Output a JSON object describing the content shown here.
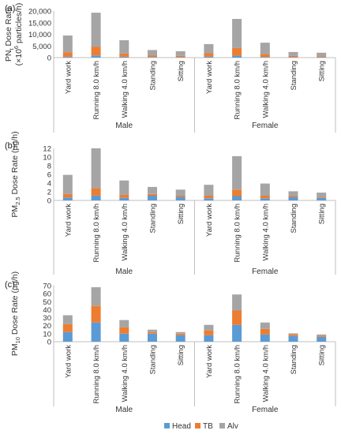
{
  "colors": {
    "Head": "#5b9bd5",
    "TB": "#ed7d31",
    "Alv": "#a5a5a5"
  },
  "legend": [
    "Head",
    "TB",
    "Alv"
  ],
  "chart_data": [
    {
      "type": "bar",
      "stacked": true,
      "panel_label": "(a)",
      "ylabel": "PN",
      "ylabel_sub": "t",
      "ylabel_rest": " Dose Rate",
      "ylabel_line2": "(×10",
      "ylabel_line2_sup": "6",
      "ylabel_line2_rest": " particles/h)",
      "ylim": [
        0,
        20000
      ],
      "yticks": [
        "0",
        "5,000",
        "10,000",
        "15,000",
        "20,000"
      ],
      "groups": [
        "Male",
        "Female"
      ],
      "categories": [
        "Yard work",
        "Running 8.0 km/h",
        "Walking 4.0 km/h",
        "Standing",
        "Sitting",
        "Yard work",
        "Running 8.0 km/h",
        "Walking 4.0 km/h",
        "Standing",
        "Sitting"
      ],
      "series": [
        {
          "name": "Head",
          "values": [
            400,
            900,
            350,
            250,
            200,
            350,
            800,
            300,
            200,
            150
          ]
        },
        {
          "name": "TB",
          "values": [
            1900,
            3700,
            1400,
            600,
            550,
            1500,
            3300,
            1300,
            500,
            450
          ]
        },
        {
          "name": "Alv",
          "values": [
            7200,
            14700,
            5700,
            2400,
            2000,
            3950,
            12500,
            4800,
            1700,
            1500
          ]
        }
      ]
    },
    {
      "type": "bar",
      "stacked": true,
      "panel_label": "(b)",
      "ylabel": "PM",
      "ylabel_sub": "2.5",
      "ylabel_rest": " Dose Rate (µg/h)",
      "ylim": [
        0,
        12
      ],
      "yticks": [
        "0",
        "2",
        "4",
        "6",
        "8",
        "10",
        "12"
      ],
      "groups": [
        "Male",
        "Female"
      ],
      "categories": [
        "Yard work",
        "Running 8.0 km/h",
        "Walking 4.0 km/h",
        "Standing",
        "Sitting",
        "Yard work",
        "Running 8.0 km/h",
        "Walking 4.0 km/h",
        "Standing",
        "Sitting"
      ],
      "series": [
        {
          "name": "Head",
          "values": [
            0.7,
            1.1,
            0.6,
            1.1,
            0.8,
            0.5,
            1.0,
            0.5,
            0.8,
            0.6
          ]
        },
        {
          "name": "TB",
          "values": [
            0.8,
            1.7,
            0.7,
            0.4,
            0.3,
            0.6,
            1.5,
            0.6,
            0.3,
            0.2
          ]
        },
        {
          "name": "Alv",
          "values": [
            4.4,
            9.2,
            3.3,
            1.6,
            1.4,
            2.5,
            7.7,
            2.8,
            1.0,
            1.0
          ]
        }
      ]
    },
    {
      "type": "bar",
      "stacked": true,
      "panel_label": "(c)",
      "ylabel": "PM",
      "ylabel_sub": "10",
      "ylabel_rest": " Dose Rate (µg/h)",
      "ylim": [
        0,
        70
      ],
      "yticks": [
        "0",
        "10",
        "20",
        "30",
        "40",
        "50",
        "60",
        "70"
      ],
      "groups": [
        "Male",
        "Female"
      ],
      "categories": [
        "Yard work",
        "Running 8.0 km/h",
        "Walking 4.0 km/h",
        "Standing",
        "Sitting",
        "Yard work",
        "Running 8.0 km/h",
        "Walking 4.0 km/h",
        "Standing",
        "Sitting"
      ],
      "series": [
        {
          "name": "Head",
          "values": [
            12,
            24,
            10,
            10,
            8,
            8,
            21,
            9,
            7,
            6
          ]
        },
        {
          "name": "TB",
          "values": [
            10,
            21,
            8,
            2,
            2,
            6,
            18,
            7,
            2,
            1.5
          ]
        },
        {
          "name": "Alv",
          "values": [
            11,
            23,
            9,
            3,
            2,
            7,
            20,
            8,
            1.5,
            1.5
          ]
        }
      ]
    }
  ]
}
